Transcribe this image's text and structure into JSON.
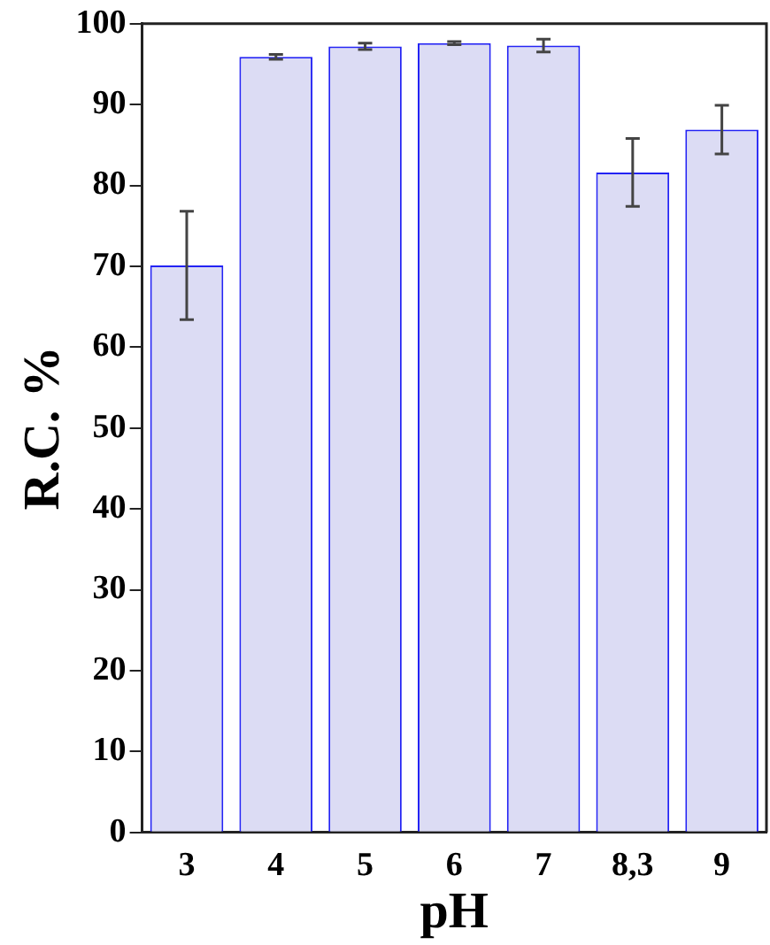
{
  "chart_data": {
    "type": "bar",
    "xlabel": "pH",
    "ylabel": "R.C. %",
    "categories": [
      "3",
      "4",
      "5",
      "6",
      "7",
      "8,3",
      "9"
    ],
    "values": [
      70.1,
      95.9,
      97.2,
      97.6,
      97.3,
      81.6,
      86.9
    ],
    "errors": [
      6.7,
      0.3,
      0.4,
      0.2,
      0.8,
      4.2,
      3
    ],
    "color": "#dcdcf4",
    "ylim": [
      0,
      100
    ],
    "yticks": [
      0,
      10,
      20,
      30,
      40,
      50,
      60,
      70,
      80,
      90,
      100
    ],
    "grid": false,
    "legend": false
  }
}
